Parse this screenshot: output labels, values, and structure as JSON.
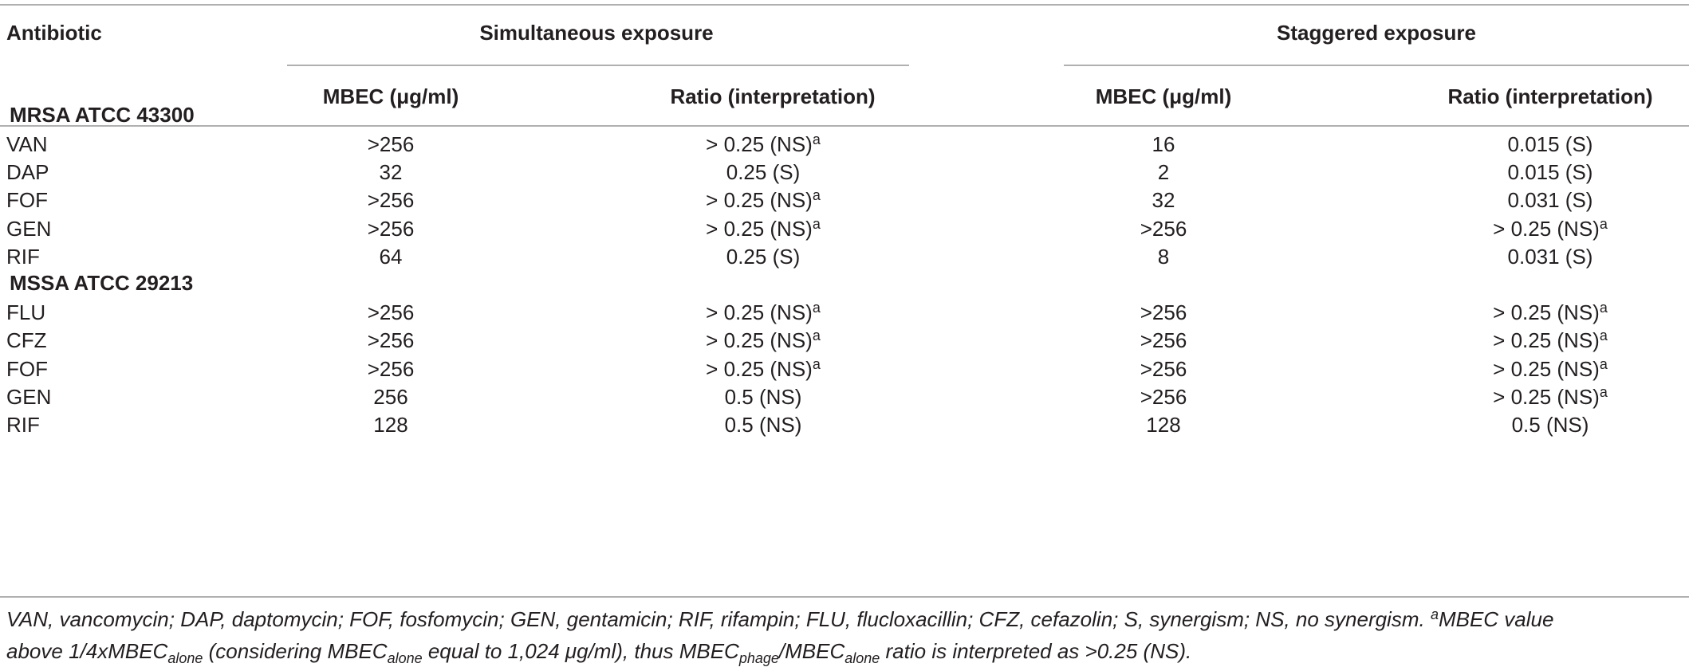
{
  "header": {
    "antibiotic": "Antibiotic",
    "simultaneous": "Simultaneous exposure",
    "staggered": "Staggered exposure",
    "mbec": "MBEC (μg/ml)",
    "ratio": "Ratio (interpretation)"
  },
  "groups": [
    {
      "title": "MRSA ATCC 43300",
      "rows": [
        {
          "antibiotic": "VAN",
          "sim_mbec": ">256",
          "sim_ratio": "> 0.25 (NS)",
          "sim_sup": "a",
          "stg_mbec": "16",
          "stg_ratio": "0.015 (S)",
          "stg_sup": ""
        },
        {
          "antibiotic": "DAP",
          "sim_mbec": "32",
          "sim_ratio": "0.25 (S)",
          "sim_sup": "",
          "stg_mbec": "2",
          "stg_ratio": "0.015 (S)",
          "stg_sup": ""
        },
        {
          "antibiotic": "FOF",
          "sim_mbec": ">256",
          "sim_ratio": "> 0.25 (NS)",
          "sim_sup": "a",
          "stg_mbec": "32",
          "stg_ratio": "0.031 (S)",
          "stg_sup": ""
        },
        {
          "antibiotic": "GEN",
          "sim_mbec": ">256",
          "sim_ratio": "> 0.25 (NS)",
          "sim_sup": "a",
          "stg_mbec": ">256",
          "stg_ratio": "> 0.25 (NS)",
          "stg_sup": "a"
        },
        {
          "antibiotic": "RIF",
          "sim_mbec": "64",
          "sim_ratio": "0.25 (S)",
          "sim_sup": "",
          "stg_mbec": "8",
          "stg_ratio": "0.031 (S)",
          "stg_sup": ""
        }
      ]
    },
    {
      "title": "MSSA ATCC 29213",
      "rows": [
        {
          "antibiotic": "FLU",
          "sim_mbec": ">256",
          "sim_ratio": "> 0.25 (NS)",
          "sim_sup": "a",
          "stg_mbec": ">256",
          "stg_ratio": "> 0.25 (NS)",
          "stg_sup": "a"
        },
        {
          "antibiotic": "CFZ",
          "sim_mbec": ">256",
          "sim_ratio": "> 0.25 (NS)",
          "sim_sup": "a",
          "stg_mbec": ">256",
          "stg_ratio": "> 0.25 (NS)",
          "stg_sup": "a"
        },
        {
          "antibiotic": "FOF",
          "sim_mbec": ">256",
          "sim_ratio": "> 0.25 (NS)",
          "sim_sup": "a",
          "stg_mbec": ">256",
          "stg_ratio": "> 0.25 (NS)",
          "stg_sup": "a"
        },
        {
          "antibiotic": "GEN",
          "sim_mbec": "256",
          "sim_ratio": "0.5 (NS)",
          "sim_sup": "",
          "stg_mbec": ">256",
          "stg_ratio": "> 0.25 (NS)",
          "stg_sup": "a"
        },
        {
          "antibiotic": "RIF",
          "sim_mbec": "128",
          "sim_ratio": "0.5 (NS)",
          "sim_sup": "",
          "stg_mbec": "128",
          "stg_ratio": "0.5 (NS)",
          "stg_sup": ""
        }
      ]
    }
  ],
  "footnote": {
    "line1": "VAN, vancomycin; DAP, daptomycin; FOF, fosfomycin; GEN, gentamicin; RIF, rifampin; FLU, flucloxacillin; CFZ, cefazolin; S, synergism; NS, no synergism. ",
    "sup_a": "a",
    "part2": "MBEC value",
    "line2a": "above 1/4xMBEC",
    "sub_alone1": "alone",
    "line2b": " (considering MBEC",
    "sub_alone2": "alone",
    "line2c": " equal to 1,024 μg/ml), thus MBEC",
    "sub_phage": "phage",
    "line2d": "/MBEC",
    "sub_alone3": "alone",
    "line2e": " ratio is interpreted as >0.25 (NS)."
  }
}
